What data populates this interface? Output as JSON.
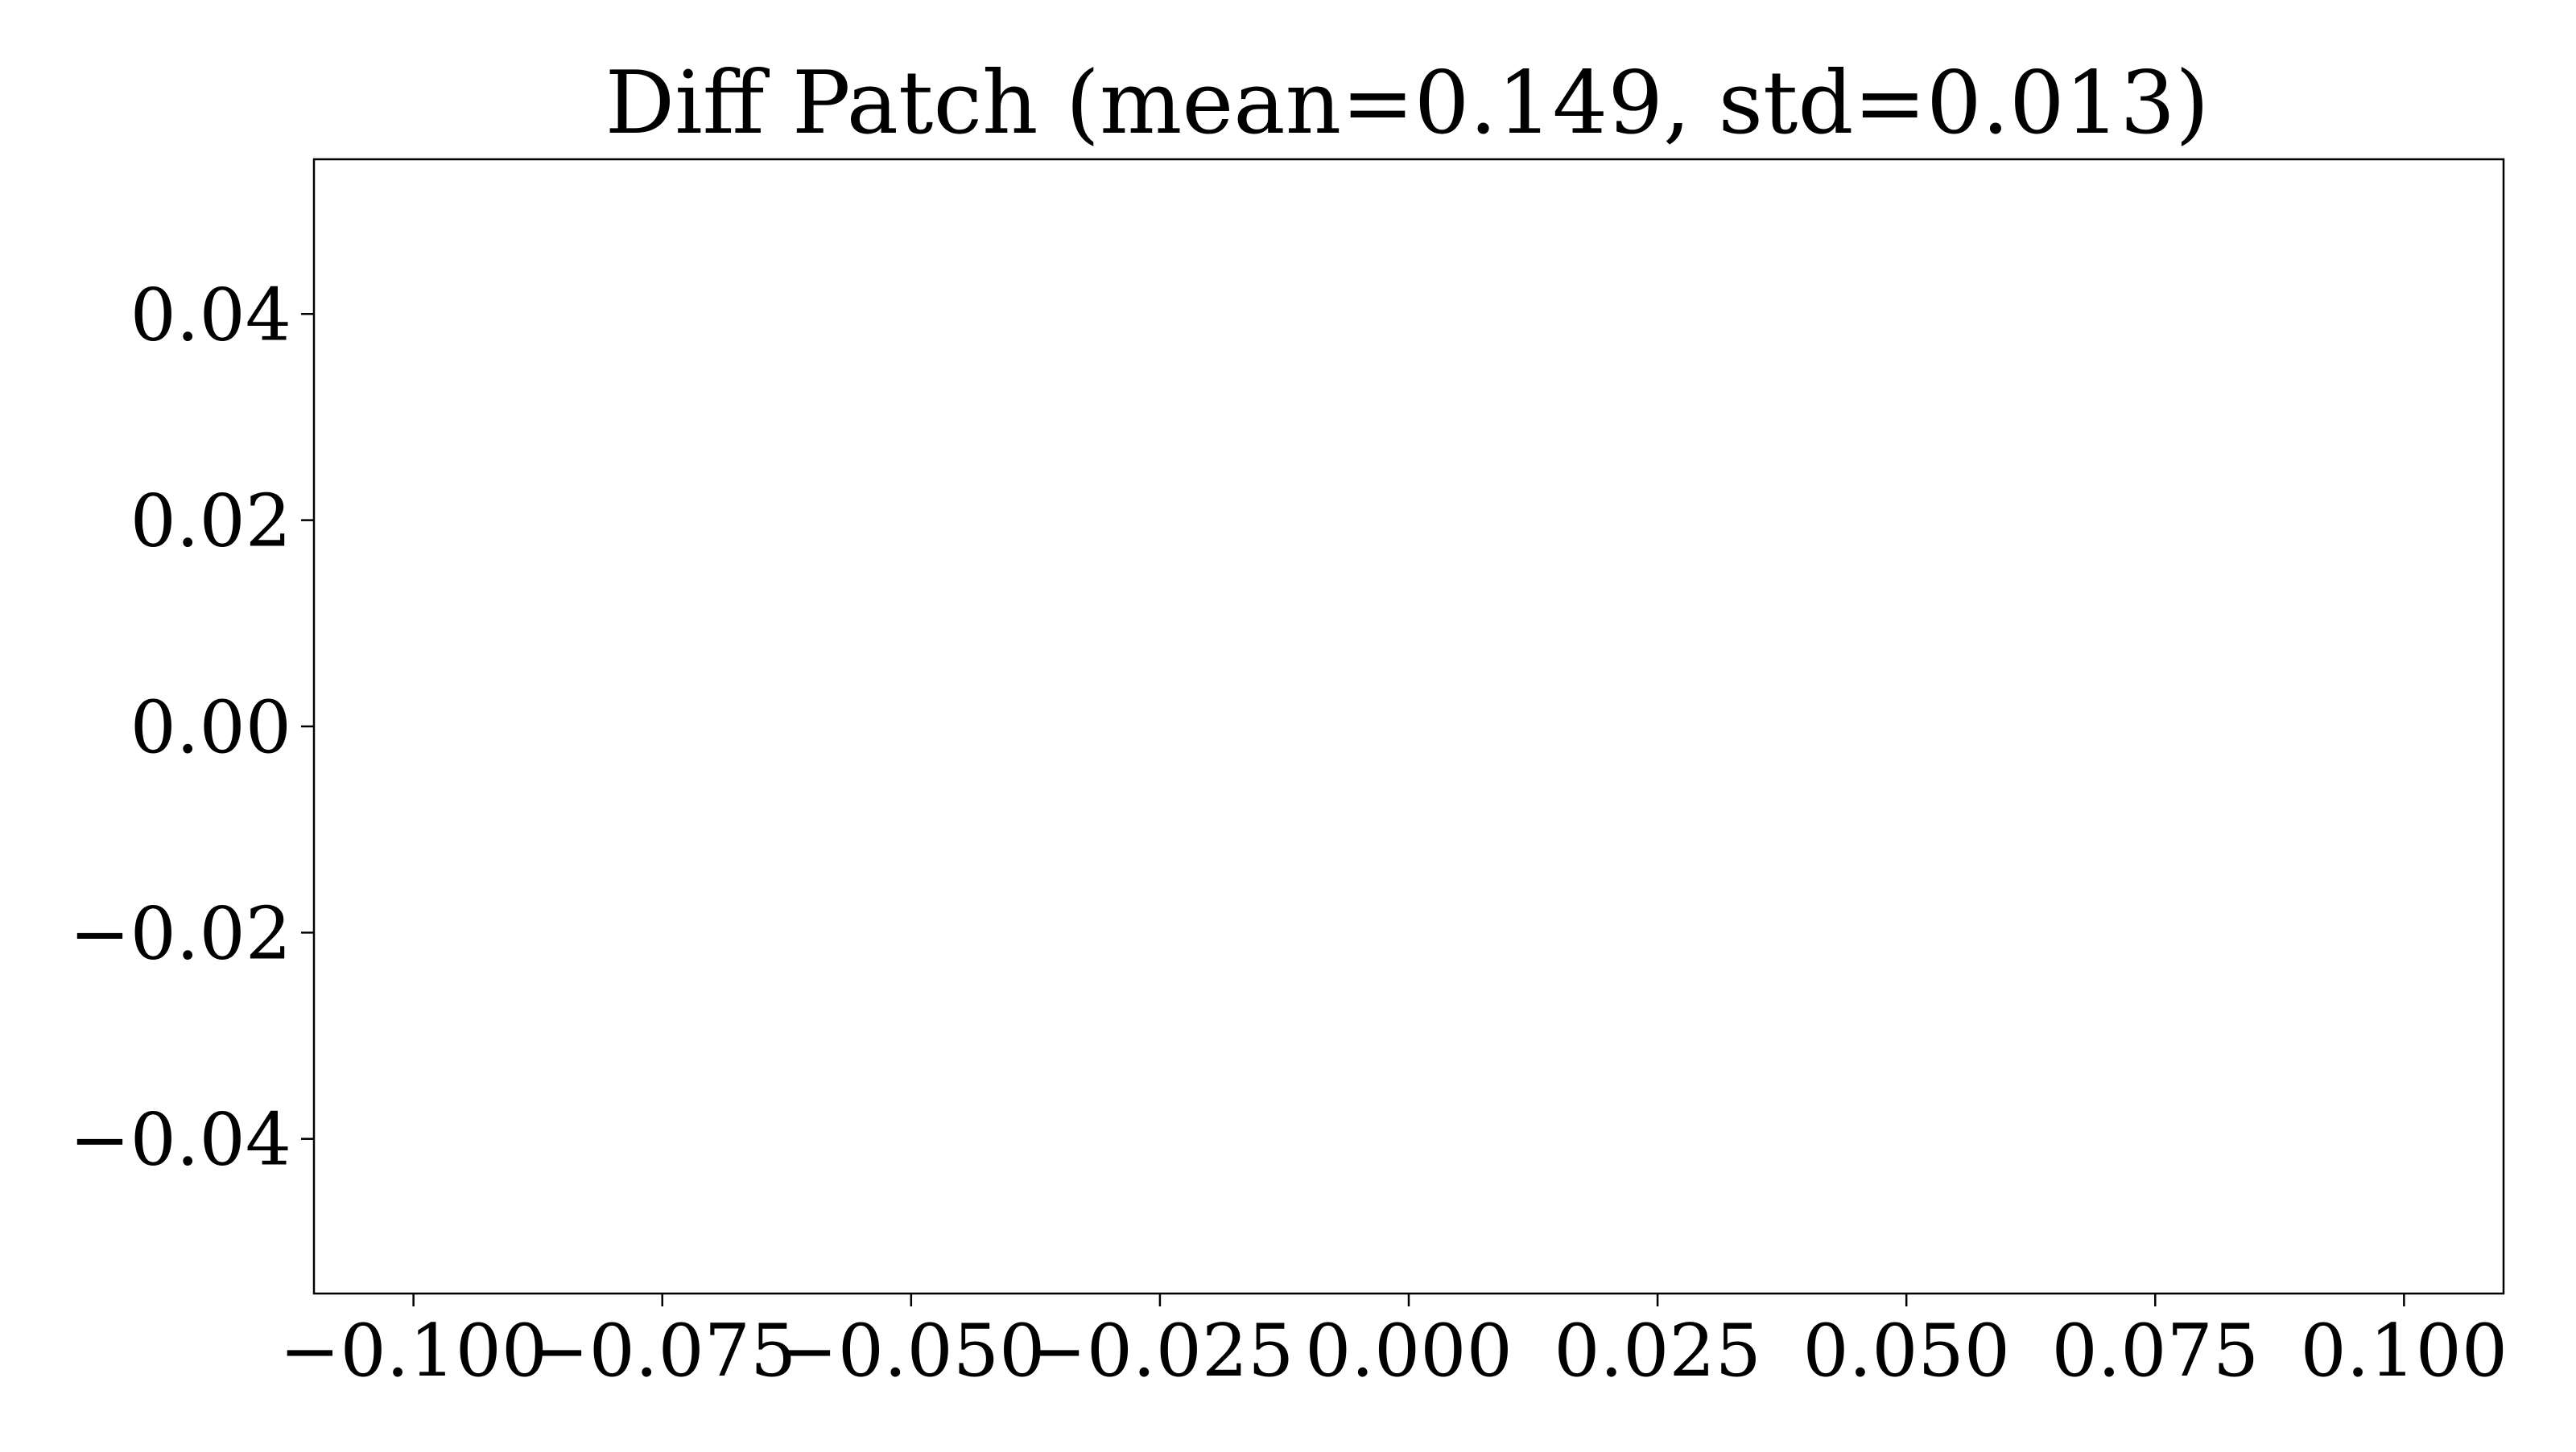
{
  "chart_data": {
    "type": "scatter",
    "title": "Diff Patch (mean=0.149, std=0.013)",
    "xlabel": "",
    "ylabel": "",
    "xlim": [
      -0.11,
      0.11
    ],
    "ylim": [
      -0.055,
      0.055
    ],
    "x_ticks": [
      {
        "value": -0.1,
        "label": "−0.100"
      },
      {
        "value": -0.075,
        "label": "−0.075"
      },
      {
        "value": -0.05,
        "label": "−0.050"
      },
      {
        "value": -0.025,
        "label": "−0.025"
      },
      {
        "value": 0.0,
        "label": "0.000"
      },
      {
        "value": 0.025,
        "label": "0.025"
      },
      {
        "value": 0.05,
        "label": "0.050"
      },
      {
        "value": 0.075,
        "label": "0.075"
      },
      {
        "value": 0.1,
        "label": "0.100"
      }
    ],
    "y_ticks": [
      {
        "value": 0.04,
        "label": "0.04"
      },
      {
        "value": 0.02,
        "label": "0.02"
      },
      {
        "value": 0.0,
        "label": "0.00"
      },
      {
        "value": -0.02,
        "label": "−0.02"
      },
      {
        "value": -0.04,
        "label": "−0.04"
      }
    ],
    "series": [],
    "grid": false,
    "colors": {
      "axis": "#000000",
      "background": "#ffffff"
    }
  }
}
